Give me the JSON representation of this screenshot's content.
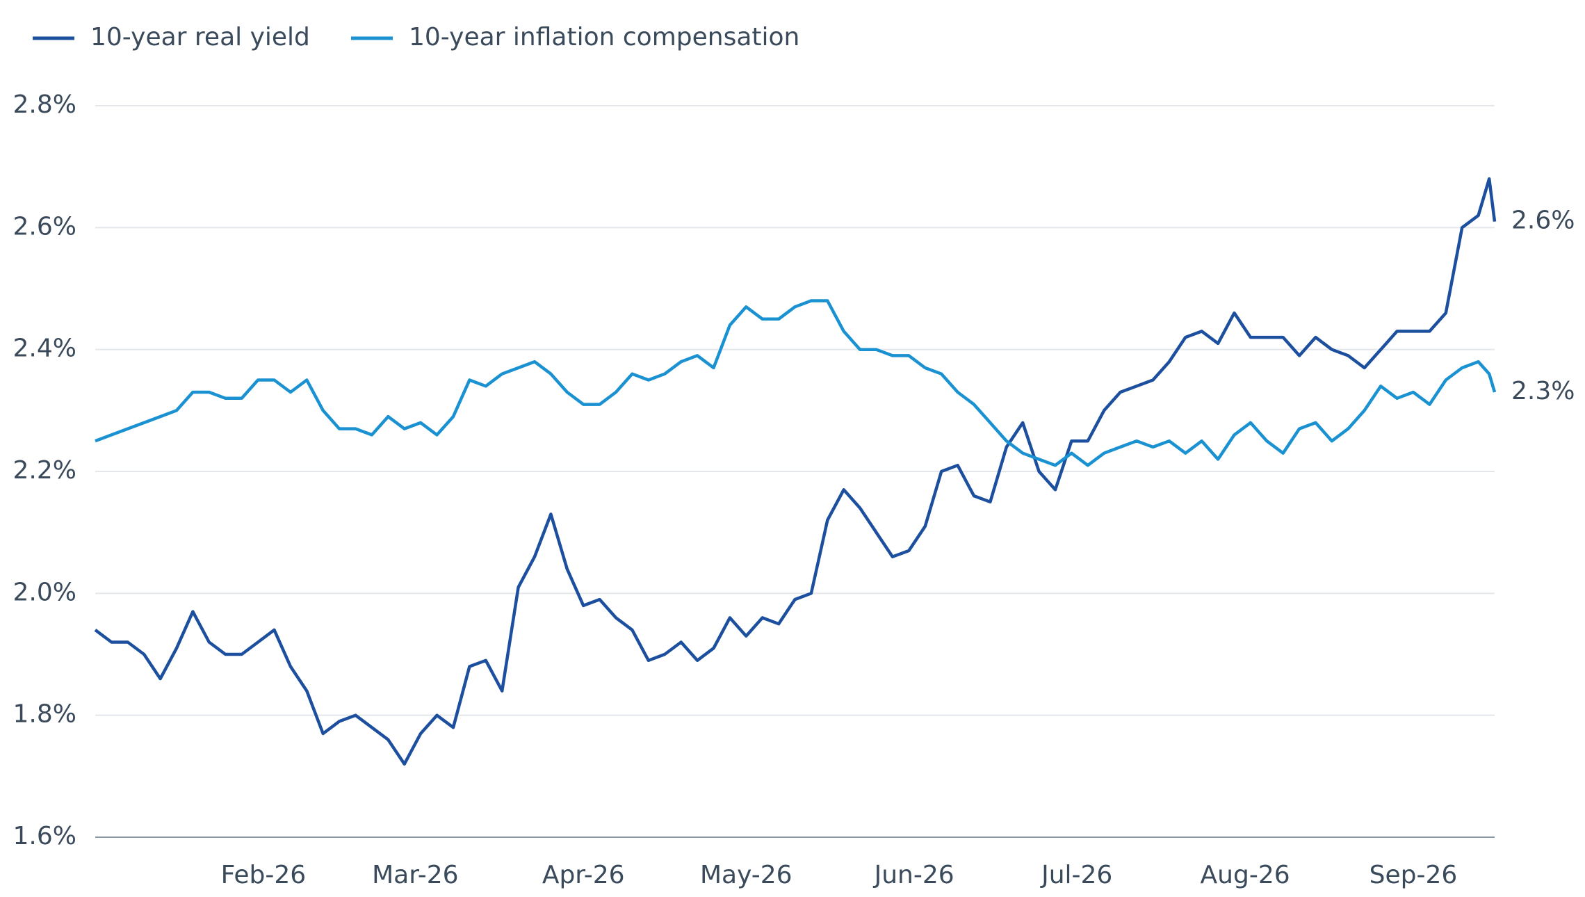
{
  "chart_data": {
    "type": "line",
    "xlim": [
      0,
      258
    ],
    "xticks": [
      {
        "value": 31,
        "label": "Feb-26"
      },
      {
        "value": 59,
        "label": "Mar-26"
      },
      {
        "value": 90,
        "label": "Apr-26"
      },
      {
        "value": 120,
        "label": "May-26"
      },
      {
        "value": 151,
        "label": "Jun-26"
      },
      {
        "value": 181,
        "label": "Jul-26"
      },
      {
        "value": 212,
        "label": "Aug-26"
      },
      {
        "value": 243,
        "label": "Sep-26"
      }
    ],
    "ylim": [
      1.6,
      2.8
    ],
    "yticks": [
      {
        "value": 1.6,
        "label": "1.6%"
      },
      {
        "value": 1.8,
        "label": "1.8%"
      },
      {
        "value": 2.0,
        "label": "2.0%"
      },
      {
        "value": 2.2,
        "label": "2.2%"
      },
      {
        "value": 2.4,
        "label": "2.4%"
      },
      {
        "value": 2.6,
        "label": "2.6%"
      },
      {
        "value": 2.8,
        "label": "2.8%"
      }
    ],
    "grid": true,
    "legend": "top-left",
    "x": [
      0,
      3,
      6,
      9,
      12,
      15,
      18,
      21,
      24,
      27,
      30,
      33,
      36,
      39,
      42,
      45,
      48,
      51,
      54,
      57,
      60,
      63,
      66,
      69,
      72,
      75,
      78,
      81,
      84,
      87,
      90,
      93,
      96,
      99,
      102,
      105,
      108,
      111,
      114,
      117,
      120,
      123,
      126,
      129,
      132,
      135,
      138,
      141,
      144,
      147,
      150,
      153,
      156,
      159,
      162,
      165,
      168,
      171,
      174,
      177,
      180,
      183,
      186,
      189,
      192,
      195,
      198,
      201,
      204,
      207,
      210,
      213,
      216,
      219,
      222,
      225,
      228,
      231,
      234,
      237,
      240,
      243,
      246,
      249,
      252,
      255,
      257,
      258
    ],
    "series": [
      {
        "name": "10-year real yield",
        "color": "#1d4f9f",
        "last_label": "2.6%",
        "values": [
          1.94,
          1.92,
          1.92,
          1.9,
          1.86,
          1.91,
          1.97,
          1.92,
          1.9,
          1.9,
          1.92,
          1.94,
          1.88,
          1.84,
          1.77,
          1.79,
          1.8,
          1.78,
          1.76,
          1.72,
          1.77,
          1.8,
          1.78,
          1.88,
          1.89,
          1.84,
          2.01,
          2.06,
          2.13,
          2.04,
          1.98,
          1.99,
          1.96,
          1.94,
          1.89,
          1.9,
          1.92,
          1.89,
          1.91,
          1.96,
          1.93,
          1.96,
          1.95,
          1.99,
          2.0,
          2.12,
          2.17,
          2.14,
          2.1,
          2.06,
          2.07,
          2.11,
          2.2,
          2.21,
          2.16,
          2.15,
          2.24,
          2.28,
          2.2,
          2.17,
          2.25,
          2.25,
          2.3,
          2.33,
          2.34,
          2.35,
          2.38,
          2.42,
          2.43,
          2.41,
          2.46,
          2.42,
          2.42,
          2.42,
          2.39,
          2.42,
          2.4,
          2.39,
          2.37,
          2.4,
          2.43,
          2.43,
          2.43,
          2.46,
          2.6,
          2.62,
          2.68,
          2.61
        ]
      },
      {
        "name": "10-year inflation compensation",
        "color": "#1a91d1",
        "last_label": "2.3%",
        "values": [
          2.25,
          2.26,
          2.27,
          2.28,
          2.29,
          2.3,
          2.33,
          2.33,
          2.32,
          2.32,
          2.35,
          2.35,
          2.33,
          2.35,
          2.3,
          2.27,
          2.27,
          2.26,
          2.29,
          2.27,
          2.28,
          2.26,
          2.29,
          2.35,
          2.34,
          2.36,
          2.37,
          2.38,
          2.36,
          2.33,
          2.31,
          2.31,
          2.33,
          2.36,
          2.35,
          2.36,
          2.38,
          2.39,
          2.37,
          2.44,
          2.47,
          2.45,
          2.45,
          2.47,
          2.48,
          2.48,
          2.43,
          2.4,
          2.4,
          2.39,
          2.39,
          2.37,
          2.36,
          2.33,
          2.31,
          2.28,
          2.25,
          2.23,
          2.22,
          2.21,
          2.23,
          2.21,
          2.23,
          2.24,
          2.25,
          2.24,
          2.25,
          2.23,
          2.25,
          2.22,
          2.26,
          2.28,
          2.25,
          2.23,
          2.27,
          2.28,
          2.25,
          2.27,
          2.3,
          2.34,
          2.32,
          2.33,
          2.31,
          2.35,
          2.37,
          2.38,
          2.36,
          2.33
        ]
      }
    ]
  }
}
